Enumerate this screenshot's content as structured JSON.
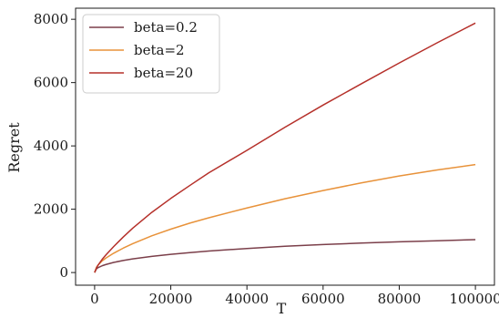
{
  "chart_data": {
    "type": "line",
    "xlabel": "T",
    "ylabel": "Regret",
    "xlim": [
      -5000,
      105000
    ],
    "ylim": [
      -400,
      8350
    ],
    "xticks": [
      0,
      20000,
      40000,
      60000,
      80000,
      100000
    ],
    "xtick_labels": [
      "0",
      "20000",
      "40000",
      "60000",
      "80000",
      "100000"
    ],
    "yticks": [
      0,
      2000,
      4000,
      6000,
      8000
    ],
    "ytick_labels": [
      "0",
      "2000",
      "4000",
      "6000",
      "8000"
    ],
    "grid": false,
    "legend_position": "top-left",
    "series": [
      {
        "name": "beta=0.2",
        "color": "#7b3f4a",
        "x": [
          0,
          500,
          1000,
          2000,
          3000,
          5000,
          7500,
          10000,
          15000,
          20000,
          25000,
          30000,
          40000,
          50000,
          60000,
          70000,
          80000,
          90000,
          100000
        ],
        "y": [
          0,
          120,
          160,
          215,
          255,
          320,
          380,
          430,
          510,
          575,
          630,
          680,
          760,
          830,
          885,
          930,
          970,
          1005,
          1040
        ]
      },
      {
        "name": "beta=2",
        "color": "#e8923a",
        "x": [
          0,
          500,
          1000,
          2000,
          3000,
          5000,
          7500,
          10000,
          15000,
          20000,
          25000,
          30000,
          40000,
          50000,
          60000,
          70000,
          80000,
          90000,
          100000
        ],
        "y": [
          0,
          170,
          250,
          370,
          460,
          610,
          770,
          910,
          1160,
          1370,
          1560,
          1730,
          2040,
          2330,
          2590,
          2830,
          3050,
          3240,
          3410
        ]
      },
      {
        "name": "beta=20",
        "color": "#b5302a",
        "x": [
          0,
          500,
          1000,
          2000,
          3000,
          5000,
          7500,
          10000,
          15000,
          20000,
          25000,
          30000,
          40000,
          50000,
          60000,
          70000,
          80000,
          90000,
          100000
        ],
        "y": [
          0,
          150,
          250,
          420,
          560,
          820,
          1120,
          1400,
          1900,
          2340,
          2750,
          3150,
          3860,
          4590,
          5290,
          5960,
          6620,
          7260,
          7880
        ]
      }
    ]
  }
}
